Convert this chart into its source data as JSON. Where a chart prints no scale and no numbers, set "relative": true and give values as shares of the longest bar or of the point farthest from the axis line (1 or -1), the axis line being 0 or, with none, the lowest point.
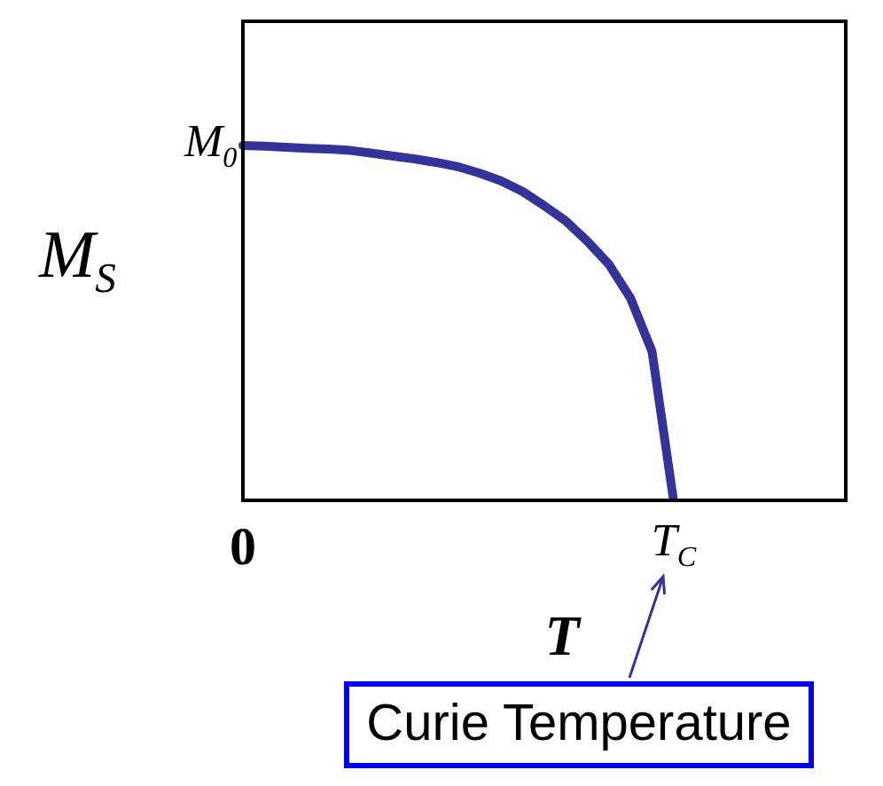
{
  "chart_data": {
    "type": "line",
    "relative": true,
    "ylabel": "M$_{S}$",
    "xlabel": "T",
    "color": "#333399",
    "categories": [
      "0",
      null,
      null,
      null,
      null,
      null,
      null,
      null,
      null,
      null,
      null,
      null,
      null,
      null,
      null,
      null,
      null,
      null,
      null,
      null,
      "T$_{C}$",
      null,
      null,
      null,
      null,
      null,
      null,
      null,
      null
    ],
    "values": [
      1,
      0.998,
      0.995,
      0.992,
      0.99,
      0.986,
      0.978,
      0.97,
      0.962,
      0.952,
      0.94,
      0.922,
      0.9,
      0.87,
      0.83,
      0.787,
      0.73,
      0.665,
      0.57,
      0.42,
      0,
      null,
      null,
      null,
      null,
      null,
      null,
      null,
      null
    ],
    "annotations": [
      {
        "text": "M$_{0}$",
        "x": "0",
        "y": 1
      },
      "Curie Temperature"
    ],
    "grid": false,
    "marker": "none",
    "line_style": "solid"
  }
}
